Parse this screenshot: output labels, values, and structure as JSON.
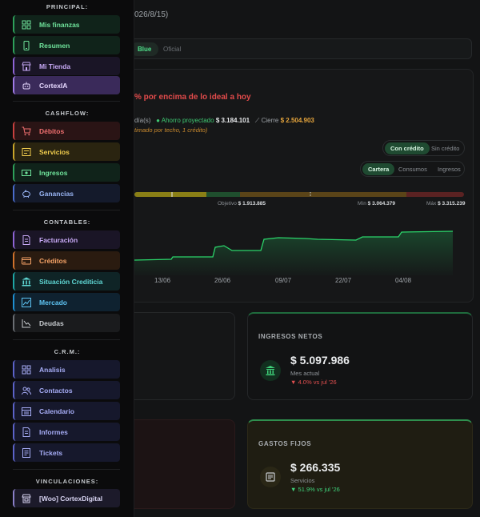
{
  "background": {
    "date_text": "026/8/15)",
    "filters": {
      "blue": "Blue",
      "oficial": "Oficial"
    },
    "alert": "% por encima de lo ideal a hoy",
    "projection": {
      "days": "día(s)",
      "savings_label": "Ahorro proyectado",
      "savings_value": "$ 3.184.101",
      "close_label": "Cierre",
      "close_value": "$ 2.504.903",
      "note": "timado por techo, 1 crédito)"
    },
    "credit_toggle": {
      "on": "Con crédito",
      "off": "Sin crédito"
    },
    "view_toggle": {
      "a": "Cartera",
      "b": "Consumos",
      "c": "Ingresos"
    },
    "scale": {
      "objective_label": "Objetivo",
      "objective_value": "$ 1.913.885",
      "min_label": "Mín",
      "min_value": "$ 3.064.379",
      "max_label": "Máx",
      "max_value": "$ 3.315.239"
    },
    "chart_data": {
      "type": "area",
      "x": [
        "13/06",
        "26/06",
        "09/07",
        "22/07",
        "04/08"
      ],
      "ticks": [
        "13/06",
        "26/06",
        "09/07",
        "22/07",
        "04/08"
      ]
    },
    "cards": {
      "ingresos": {
        "title": "INGRESOS NETOS",
        "value": "$ 5.097.986",
        "sub": "Mes actual",
        "delta": "4.0% vs jul '26"
      },
      "gastos": {
        "title": "GASTOS FIJOS",
        "value": "$ 266.335",
        "sub": "Servicios",
        "delta": "51.9% vs jul '26"
      }
    }
  },
  "sidebar": {
    "sections": [
      {
        "title": "PRINCIPAL:"
      },
      {
        "title": "CASHFLOW:"
      },
      {
        "title": "CONTABLES:"
      },
      {
        "title": "C.R.M.:"
      },
      {
        "title": "VINCULACIONES:"
      }
    ],
    "items": [
      {
        "label": "Mis finanzas",
        "icon": "grid-icon"
      },
      {
        "label": "Resumen",
        "icon": "phone-icon"
      },
      {
        "label": "Mi Tienda",
        "icon": "store-icon"
      },
      {
        "label": "CortexIA",
        "icon": "robot-icon"
      },
      {
        "label": "Débitos",
        "icon": "cart-icon"
      },
      {
        "label": "Servicios",
        "icon": "receipt-icon"
      },
      {
        "label": "Ingresos",
        "icon": "cash-icon"
      },
      {
        "label": "Ganancias",
        "icon": "piggy-bank-icon"
      },
      {
        "label": "Facturación",
        "icon": "invoice-icon"
      },
      {
        "label": "Créditos",
        "icon": "card-icon"
      },
      {
        "label": "Situación Crediticia",
        "icon": "bank-icon"
      },
      {
        "label": "Mercado",
        "icon": "chart-line-icon"
      },
      {
        "label": "Deudas",
        "icon": "chart-trend-icon"
      },
      {
        "label": "Analisis",
        "icon": "grid-icon"
      },
      {
        "label": "Contactos",
        "icon": "users-icon"
      },
      {
        "label": "Calendario",
        "icon": "calendar-icon"
      },
      {
        "label": "Informes",
        "icon": "document-icon"
      },
      {
        "label": "Tickets",
        "icon": "ticket-icon"
      },
      {
        "label": "[Woo] CortexDigital",
        "icon": "shop-icon"
      }
    ]
  }
}
